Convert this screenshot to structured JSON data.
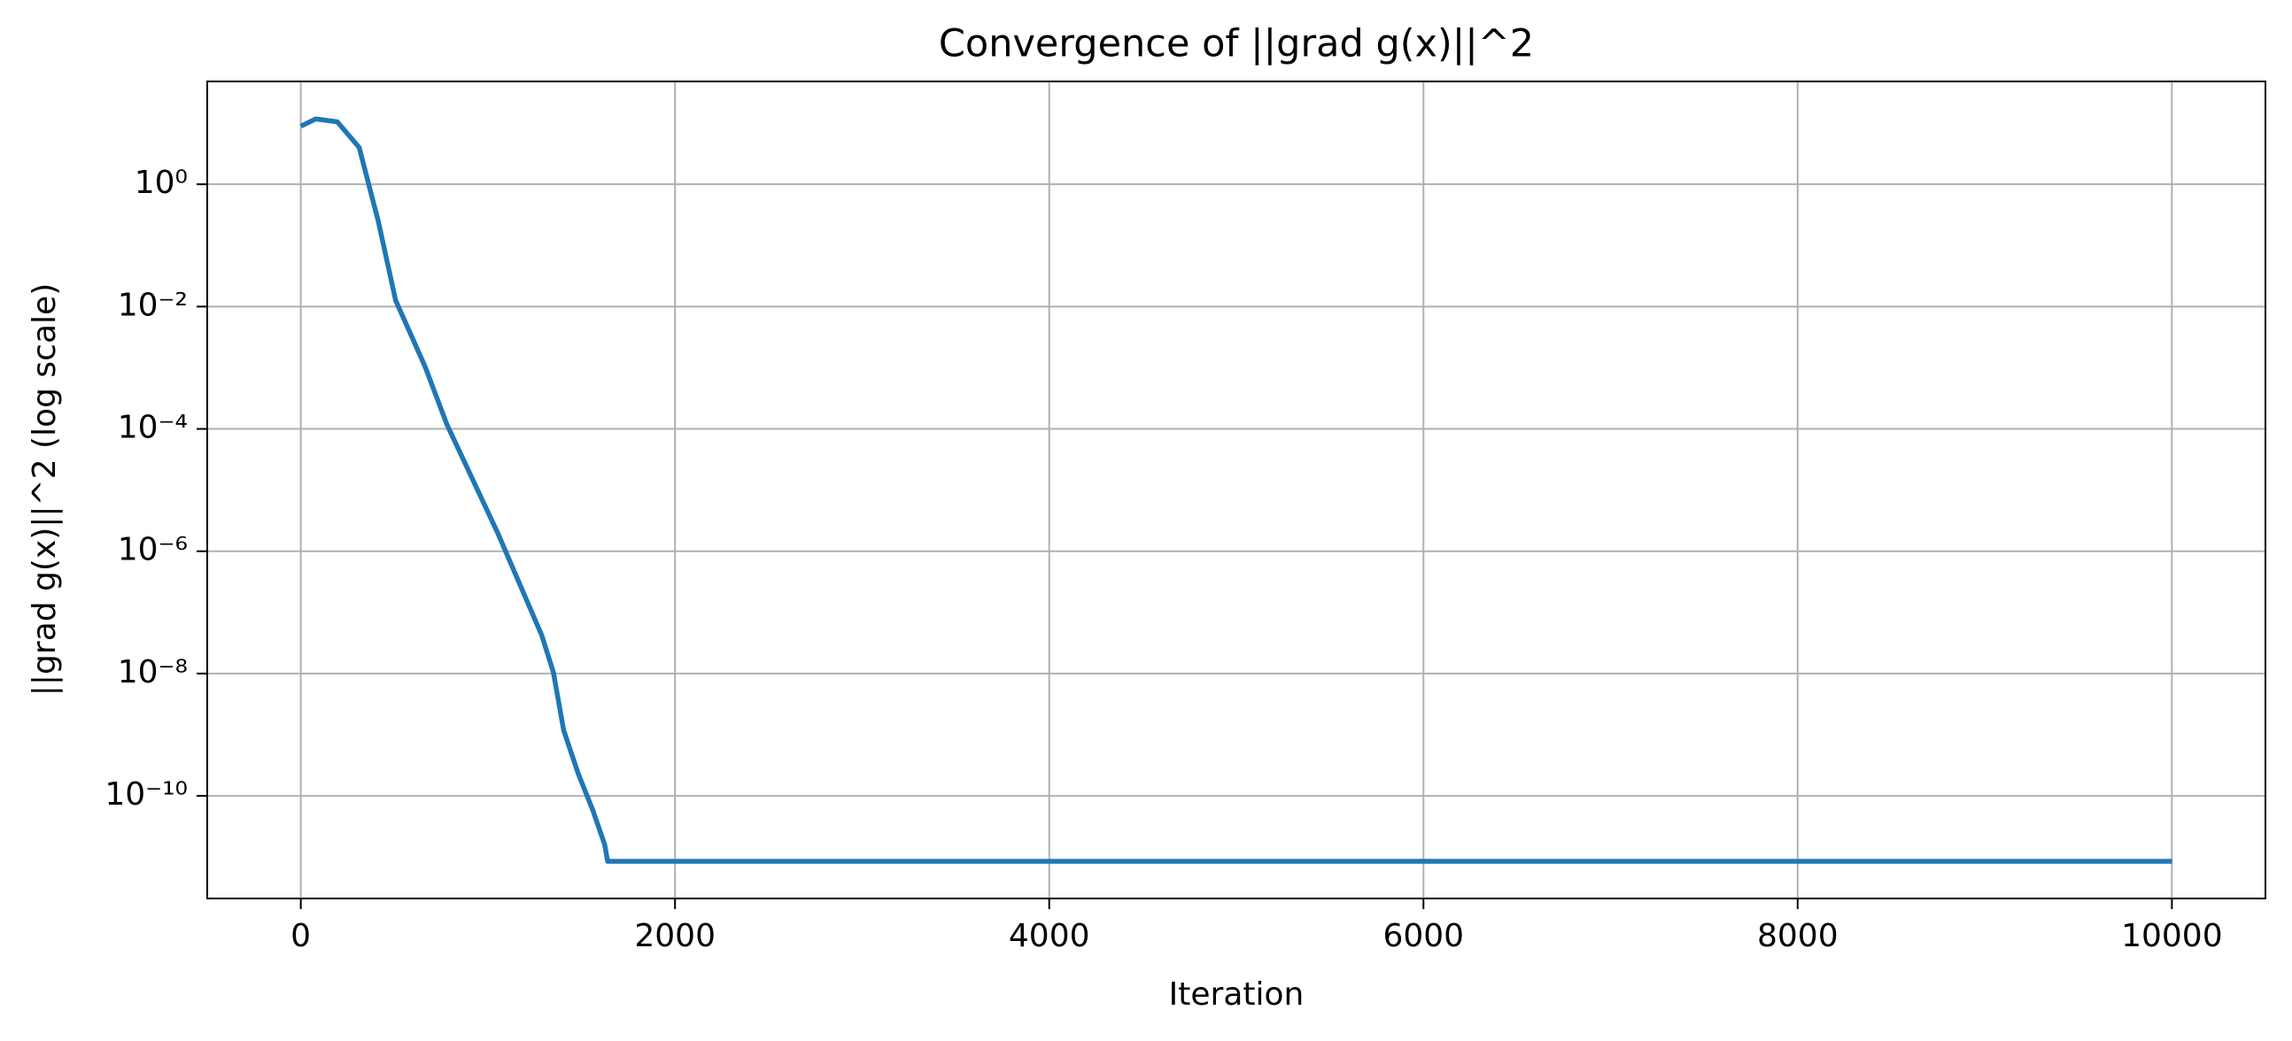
{
  "chart_data": {
    "type": "line",
    "title": "Convergence of ||grad g(x)||^2",
    "xlabel": "Iteration",
    "ylabel": "||grad g(x)||^2 (log scale)",
    "yscale": "log",
    "grid": true,
    "x": [
      0,
      80,
      195,
      312,
      414,
      507,
      664,
      781,
      1054,
      1288,
      1350,
      1405,
      1483,
      1561,
      1624,
      1640,
      10000
    ],
    "series": [
      {
        "color": "#1f77b4",
        "values": [
          8.9,
          11.7,
          10.5,
          4,
          0.25,
          0.0126,
          0.00105,
          0.000118,
          1.94e-06,
          4.2e-08,
          1.05e-08,
          1.18e-09,
          2.3e-10,
          5.8e-11,
          1.6e-11,
          8.5e-12,
          8.5e-12
        ]
      }
    ],
    "xlim": [
      -500,
      10500
    ],
    "xticks": [
      0,
      2000,
      4000,
      6000,
      8000,
      10000
    ],
    "ylim": [
      2.1e-12,
      48
    ],
    "yticks": [
      {
        "value": 1e-10,
        "label": "10⁻¹⁰"
      },
      {
        "value": 1e-08,
        "label": "10⁻⁸"
      },
      {
        "value": 1e-06,
        "label": "10⁻⁶"
      },
      {
        "value": 0.0001,
        "label": "10⁻⁴"
      },
      {
        "value": 0.01,
        "label": "10⁻²"
      },
      {
        "value": 1,
        "label": "10⁰"
      }
    ]
  }
}
